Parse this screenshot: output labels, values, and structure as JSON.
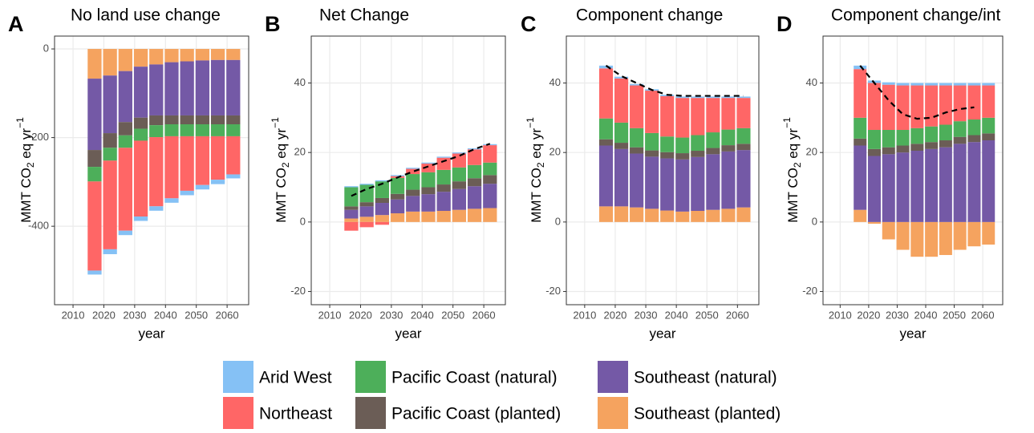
{
  "chart_data": [
    {
      "type": "bar",
      "panel_label": "A",
      "title": "No land use change",
      "xlabel": "year",
      "ylabel": {
        "text": "MMT CO",
        "sub": "2",
        "rest": " eq  yr",
        "sup": "−1"
      },
      "x": [
        2017,
        2022,
        2027,
        2032,
        2037,
        2042,
        2047,
        2052,
        2057,
        2062
      ],
      "xlim": [
        2004,
        2067
      ],
      "xticks": [
        2010,
        2020,
        2030,
        2040,
        2050,
        2060
      ],
      "ylim": [
        -577,
        29
      ],
      "yticks": [
        -400,
        -200,
        0
      ],
      "grid": true,
      "stacked": true,
      "series": [
        {
          "name": "Arid West",
          "color": "#85c1f5",
          "values": [
            -9,
            -11,
            -10,
            -10,
            -10,
            -10,
            -10,
            -10,
            -10,
            -9
          ]
        },
        {
          "name": "Northeast",
          "color": "#ff6666",
          "values": [
            -201,
            -200,
            -187,
            -171,
            -156,
            -140,
            -123,
            -110,
            -98,
            -86
          ]
        },
        {
          "name": "Pacific Coast (natural)",
          "color": "#4daf5a",
          "values": [
            -33,
            -29,
            -28,
            -27,
            -27,
            -27,
            -27,
            -27,
            -27,
            -27
          ]
        },
        {
          "name": "Pacific Coast (planted)",
          "color": "#6b5d56",
          "values": [
            -38,
            -33,
            -30,
            -25,
            -22,
            -20,
            -20,
            -20,
            -20,
            -20
          ]
        },
        {
          "name": "Southeast (natural)",
          "color": "#7459a6",
          "values": [
            -161,
            -130,
            -115,
            -115,
            -115,
            -120,
            -122,
            -124,
            -125,
            -125
          ]
        },
        {
          "name": "Southeast (planted)",
          "color": "#f5a35f",
          "values": [
            -67,
            -60,
            -50,
            -40,
            -35,
            -30,
            -28,
            -26,
            -25,
            -25
          ]
        }
      ]
    },
    {
      "type": "bar",
      "panel_label": "B",
      "title": "Net Change",
      "xlabel": "year",
      "ylabel": {
        "text": "MMT CO",
        "sub": "2",
        "rest": " eq  yr",
        "sup": "−1"
      },
      "x": [
        2017,
        2022,
        2027,
        2032,
        2037,
        2042,
        2047,
        2052,
        2057,
        2062
      ],
      "xlim": [
        2004,
        2067
      ],
      "xticks": [
        2010,
        2020,
        2030,
        2040,
        2050,
        2060
      ],
      "ylim": [
        -23.8,
        53.5
      ],
      "yticks": [
        -20,
        0,
        20,
        40
      ],
      "grid": true,
      "stacked": true,
      "series": [
        {
          "name": "Arid West",
          "color": "#85c1f5",
          "values": [
            0.3,
            0.3,
            0.3,
            0.3,
            0.3,
            0.3,
            0.3,
            0.3,
            0.3,
            0.3
          ]
        },
        {
          "name": "Northeast",
          "color": "#ff6666",
          "values": [
            -2.5,
            -1.5,
            -0.8,
            0.5,
            1.5,
            2.5,
            3.5,
            4,
            4.5,
            5
          ]
        },
        {
          "name": "Pacific Coast (natural)",
          "color": "#4daf5a",
          "values": [
            5.5,
            5,
            4.8,
            4.6,
            4.5,
            4.3,
            4.2,
            4,
            3.8,
            3.6
          ]
        },
        {
          "name": "Pacific Coast (planted)",
          "color": "#6b5d56",
          "values": [
            1,
            1.2,
            1.4,
            1.6,
            1.8,
            2,
            2.1,
            2.2,
            2.3,
            2.5
          ]
        },
        {
          "name": "Southeast (natural)",
          "color": "#7459a6",
          "values": [
            2.5,
            3,
            3.5,
            4,
            4.5,
            5,
            5.5,
            6,
            6.5,
            7
          ]
        },
        {
          "name": "Southeast (planted)",
          "color": "#f5a35f",
          "values": [
            1,
            1.5,
            2,
            2.5,
            3,
            3,
            3.2,
            3.5,
            3.8,
            4
          ]
        }
      ],
      "dashed_line": {
        "color": "#000000",
        "values": [
          7.5,
          9.5,
          11,
          12.8,
          14.5,
          16,
          17.5,
          19,
          21,
          22.5
        ]
      }
    },
    {
      "type": "bar",
      "panel_label": "C",
      "title": "Component change",
      "xlabel": "year",
      "ylabel": {
        "text": "MMT CO",
        "sub": "2",
        "rest": " eq  yr",
        "sup": "−1"
      },
      "x": [
        2017,
        2022,
        2027,
        2032,
        2037,
        2042,
        2047,
        2052,
        2057,
        2062
      ],
      "xlim": [
        2004,
        2067
      ],
      "xticks": [
        2010,
        2020,
        2030,
        2040,
        2050,
        2060
      ],
      "ylim": [
        -23.8,
        53.5
      ],
      "yticks": [
        -20,
        0,
        20,
        40
      ],
      "grid": true,
      "stacked": true,
      "series": [
        {
          "name": "Arid West",
          "color": "#85c1f5",
          "values": [
            0.8,
            0.5,
            0.4,
            0.4,
            0.4,
            0.4,
            0.4,
            0.4,
            0.4,
            0.4
          ]
        },
        {
          "name": "Northeast",
          "color": "#ff6666",
          "values": [
            14.4,
            12.7,
            12.3,
            12.2,
            11.6,
            11.4,
            10.7,
            9.9,
            9.1,
            8.7
          ]
        },
        {
          "name": "Pacific Coast (natural)",
          "color": "#4daf5a",
          "values": [
            6,
            5.8,
            5.5,
            5,
            4.5,
            4.5,
            4.5,
            4.5,
            4.5,
            4.5
          ]
        },
        {
          "name": "Pacific Coast (planted)",
          "color": "#6b5d56",
          "values": [
            1.8,
            1.8,
            1.8,
            1.8,
            1.8,
            1.8,
            1.8,
            1.8,
            1.8,
            1.8
          ]
        },
        {
          "name": "Southeast (natural)",
          "color": "#7459a6",
          "values": [
            17.5,
            16.5,
            15.5,
            15,
            15,
            15,
            15.5,
            16,
            16.5,
            16.5
          ]
        },
        {
          "name": "Southeast (planted)",
          "color": "#f5a35f",
          "values": [
            4.5,
            4.5,
            4.2,
            3.8,
            3.3,
            3,
            3.2,
            3.5,
            3.8,
            4.2
          ]
        }
      ],
      "dashed_line": {
        "color": "#000000",
        "values": [
          45,
          42,
          40,
          38,
          36.6,
          36.3,
          36.3,
          36.3,
          36.3,
          36.3
        ]
      }
    },
    {
      "type": "bar",
      "panel_label": "D",
      "title": "Component change/int",
      "xlabel": "year",
      "ylabel": {
        "text": "MMT CO",
        "sub": "2",
        "rest": " eq  yr",
        "sup": "−1"
      },
      "x": [
        2017,
        2022,
        2027,
        2032,
        2037,
        2042,
        2047,
        2052,
        2057,
        2062
      ],
      "xlim": [
        2004,
        2067
      ],
      "xticks": [
        2010,
        2020,
        2030,
        2040,
        2050,
        2060
      ],
      "ylim": [
        -23.8,
        53.5
      ],
      "yticks": [
        -20,
        0,
        20,
        40
      ],
      "grid": true,
      "stacked": true,
      "series": [
        {
          "name": "Arid West",
          "color": "#85c1f5",
          "values": [
            1,
            0.7,
            0.7,
            0.7,
            0.7,
            0.7,
            0.7,
            0.7,
            0.7,
            0.7
          ]
        },
        {
          "name": "Northeast",
          "color": "#ff6666",
          "values": [
            14,
            13.5,
            13,
            12.8,
            12.3,
            11.8,
            11.3,
            10.3,
            9.8,
            9.3
          ]
        },
        {
          "name": "Pacific Coast (natural)",
          "color": "#4daf5a",
          "values": [
            6,
            5.5,
            5,
            4.5,
            4.5,
            4.5,
            4.5,
            4.5,
            4.5,
            4.5
          ]
        },
        {
          "name": "Pacific Coast (planted)",
          "color": "#6b5d56",
          "values": [
            2,
            2,
            2,
            2,
            2,
            2,
            2,
            2,
            2,
            2
          ]
        },
        {
          "name": "Southeast (natural)",
          "color": "#7459a6",
          "values": [
            18.5,
            19,
            19.5,
            20,
            20.5,
            21,
            21.5,
            22.5,
            23,
            23.5
          ]
        },
        {
          "name": "Southeast (planted)",
          "color": "#f5a35f",
          "values": [
            3.5,
            -0.5,
            -5,
            -8,
            -10,
            -10,
            -9.5,
            -8,
            -7,
            -6.5
          ]
        }
      ],
      "dashed_line": {
        "color": "#000000",
        "values": [
          45,
          40,
          35,
          31,
          29.7,
          30,
          31.5,
          32.5,
          33,
          null
        ]
      }
    }
  ]
}
